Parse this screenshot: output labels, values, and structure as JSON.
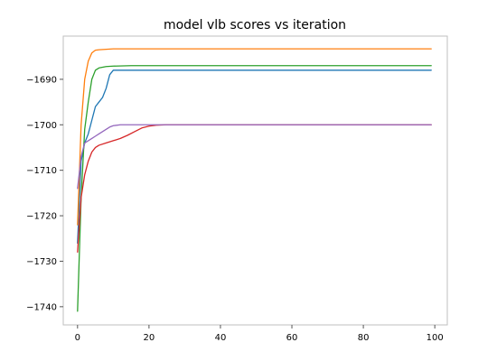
{
  "chart_data": {
    "type": "line",
    "title": "model vlb scores vs iteration",
    "xlabel": "",
    "ylabel": "",
    "xlim": [
      -4,
      103.5
    ],
    "ylim": [
      -1744,
      -1680.5
    ],
    "xticks": [
      0,
      20,
      40,
      60,
      80,
      100
    ],
    "yticks": [
      -1740,
      -1730,
      -1720,
      -1710,
      -1700,
      -1690
    ],
    "grid": false,
    "series": [
      {
        "color": "#1f77b4",
        "x": [
          0,
          1,
          2,
          3,
          4,
          5,
          6,
          7,
          8,
          9,
          10,
          15,
          20,
          40,
          60,
          80,
          99
        ],
        "y": [
          -1726,
          -1708,
          -1704,
          -1702,
          -1699,
          -1696,
          -1695,
          -1694,
          -1692,
          -1689,
          -1688,
          -1688,
          -1688,
          -1688,
          -1688,
          -1688,
          -1688
        ]
      },
      {
        "color": "#ff7f0e",
        "x": [
          0,
          1,
          2,
          3,
          4,
          5,
          6,
          8,
          10,
          20,
          40,
          60,
          80,
          99
        ],
        "y": [
          -1722,
          -1700,
          -1690,
          -1686,
          -1684.2,
          -1683.6,
          -1683.5,
          -1683.4,
          -1683.3,
          -1683.3,
          -1683.3,
          -1683.3,
          -1683.3,
          -1683.3
        ]
      },
      {
        "color": "#2ca02c",
        "x": [
          0,
          1,
          2,
          3,
          4,
          5,
          6,
          8,
          10,
          15,
          20,
          40,
          60,
          80,
          99
        ],
        "y": [
          -1741,
          -1716,
          -1701,
          -1695,
          -1690,
          -1688,
          -1687.5,
          -1687.2,
          -1687.1,
          -1687,
          -1687,
          -1687,
          -1687,
          -1687,
          -1687
        ]
      },
      {
        "color": "#d62728",
        "x": [
          0,
          1,
          2,
          3,
          4,
          5,
          6,
          8,
          10,
          12,
          14,
          16,
          18,
          20,
          22,
          25,
          30,
          40,
          60,
          80,
          99
        ],
        "y": [
          -1728,
          -1716,
          -1711,
          -1708,
          -1706,
          -1705,
          -1704.5,
          -1704,
          -1703.5,
          -1703,
          -1702.3,
          -1701.5,
          -1700.7,
          -1700.3,
          -1700.1,
          -1700,
          -1700,
          -1700,
          -1700,
          -1700,
          -1700
        ]
      },
      {
        "color": "#9467bd",
        "x": [
          0,
          1,
          2,
          3,
          4,
          5,
          6,
          7,
          8,
          9,
          10,
          12,
          14,
          16,
          20,
          40,
          60,
          80,
          99
        ],
        "y": [
          -1714,
          -1707,
          -1704,
          -1703.5,
          -1703,
          -1702.5,
          -1702,
          -1701.5,
          -1701,
          -1700.5,
          -1700.2,
          -1700,
          -1700,
          -1700,
          -1700,
          -1700,
          -1700,
          -1700,
          -1700
        ]
      }
    ]
  }
}
